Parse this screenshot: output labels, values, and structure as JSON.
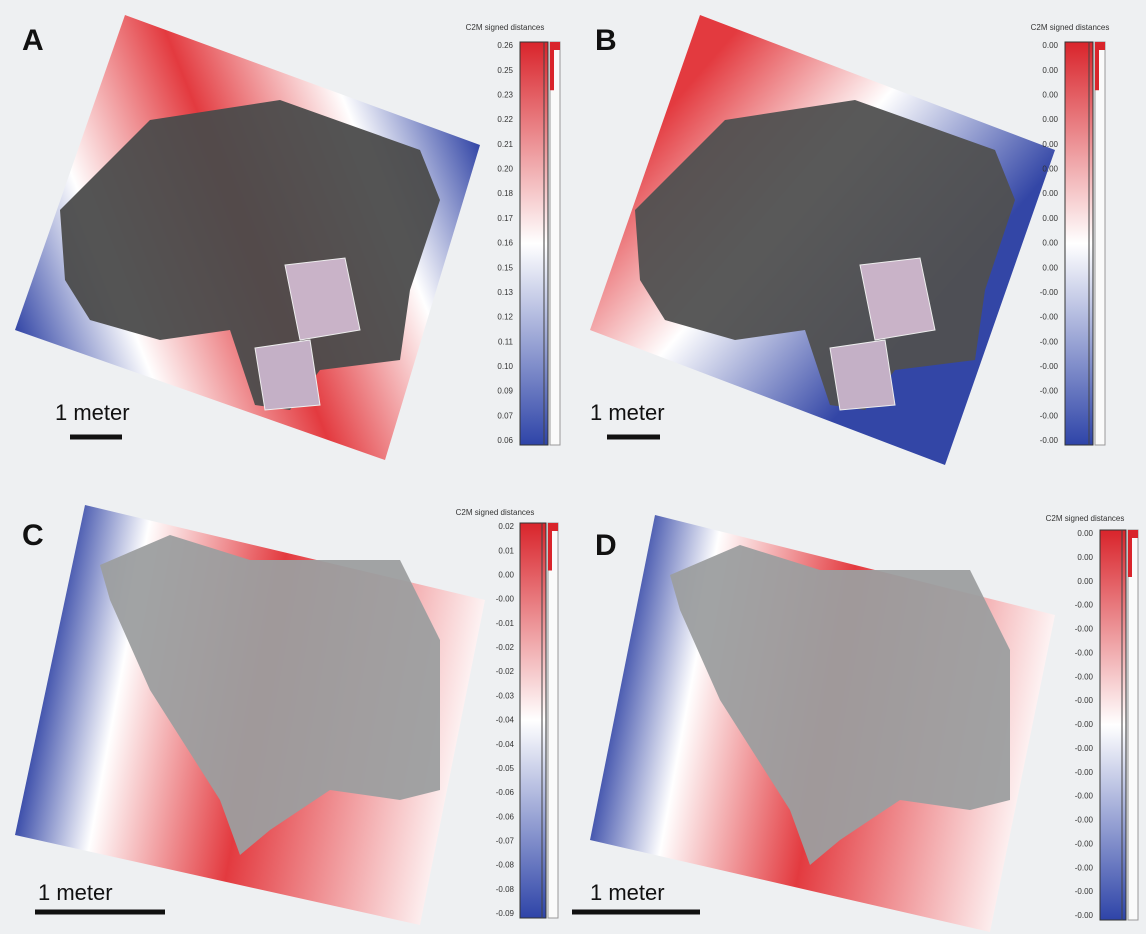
{
  "panels": [
    {
      "label": "A",
      "scale_label": "1 meter",
      "colorbar": {
        "title": "C2M signed distances",
        "ticks": [
          "0.26",
          "0.25",
          "0.23",
          "0.22",
          "0.21",
          "0.20",
          "0.18",
          "0.17",
          "0.16",
          "0.15",
          "0.13",
          "0.12",
          "0.11",
          "0.10",
          "0.09",
          "0.07",
          "0.06"
        ]
      }
    },
    {
      "label": "B",
      "scale_label": "1 meter",
      "colorbar": {
        "title": "C2M signed distances",
        "ticks": [
          "0.00",
          "0.00",
          "0.00",
          "0.00",
          "0.00",
          "0.00",
          "0.00",
          "0.00",
          "0.00",
          "0.00",
          "-0.00",
          "-0.00",
          "-0.00",
          "-0.00",
          "-0.00",
          "-0.00",
          "-0.00"
        ]
      }
    },
    {
      "label": "C",
      "scale_label": "1 meter",
      "colorbar": {
        "title": "C2M signed distances",
        "ticks": [
          "0.02",
          "0.01",
          "0.00",
          "-0.00",
          "-0.01",
          "-0.02",
          "-0.02",
          "-0.03",
          "-0.04",
          "-0.04",
          "-0.05",
          "-0.06",
          "-0.06",
          "-0.07",
          "-0.08",
          "-0.08",
          "-0.09"
        ]
      }
    },
    {
      "label": "D",
      "scale_label": "1 meter",
      "colorbar": {
        "title": "C2M signed distances",
        "ticks": [
          "0.00",
          "0.00",
          "0.00",
          "-0.00",
          "-0.00",
          "-0.00",
          "-0.00",
          "-0.00",
          "-0.00",
          "-0.00",
          "-0.00",
          "-0.00",
          "-0.00",
          "-0.00",
          "-0.00",
          "-0.00",
          "-0.00"
        ]
      }
    }
  ]
}
